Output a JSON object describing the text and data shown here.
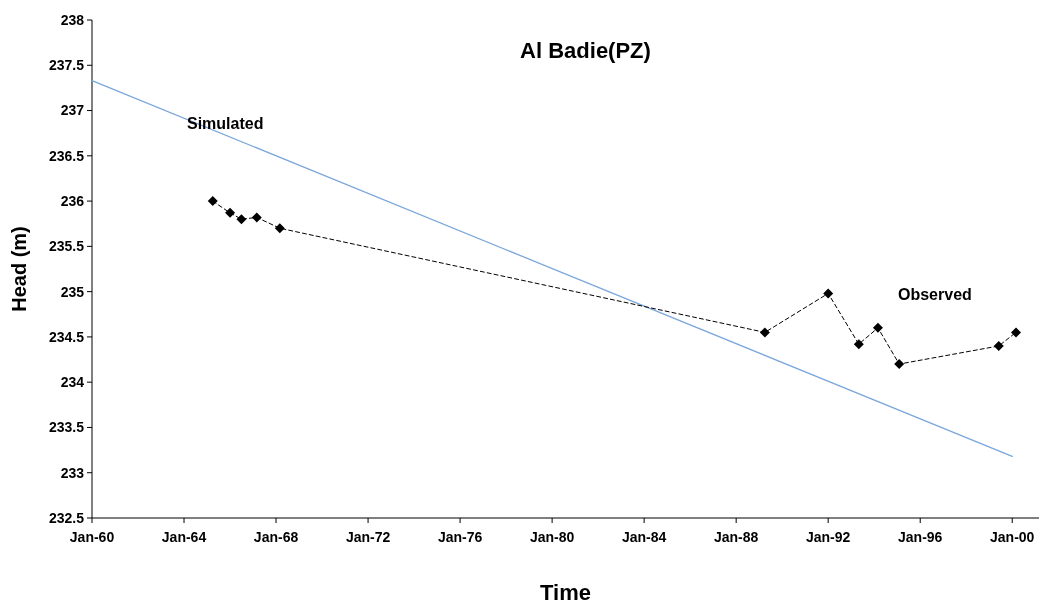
{
  "chart_data": {
    "type": "line",
    "title": "Al Badie(PZ)",
    "xlabel": "Time",
    "ylabel": "Head (m)",
    "xlim": [
      "1960-01",
      "2001-03"
    ],
    "xticks": [
      {
        "value": "1960-01",
        "label": "Jan-60"
      },
      {
        "value": "1964-01",
        "label": "Jan-64"
      },
      {
        "value": "1968-01",
        "label": "Jan-68"
      },
      {
        "value": "1972-01",
        "label": "Jan-72"
      },
      {
        "value": "1976-01",
        "label": "Jan-76"
      },
      {
        "value": "1980-01",
        "label": "Jan-80"
      },
      {
        "value": "1984-01",
        "label": "Jan-84"
      },
      {
        "value": "1988-01",
        "label": "Jan-88"
      },
      {
        "value": "1992-01",
        "label": "Jan-92"
      },
      {
        "value": "1996-01",
        "label": "Jan-96"
      },
      {
        "value": "2000-01",
        "label": "Jan-00"
      }
    ],
    "ylim": [
      232.5,
      238
    ],
    "yticks": [
      232.5,
      233,
      233.5,
      234,
      234.5,
      235,
      235.5,
      236,
      236.5,
      237,
      237.5,
      238
    ],
    "grid": false,
    "series": [
      {
        "name": "Simulated",
        "color": "#7aa6dc",
        "marker": "none",
        "line_style": "solid",
        "x": [
          "1960-01",
          "2000-01"
        ],
        "values": [
          237.33,
          233.18
        ]
      },
      {
        "name": "Observed",
        "color": "#000000",
        "marker": "diamond",
        "line_style": "dashed",
        "x": [
          "1965-04",
          "1966-01",
          "1966-07",
          "1967-03",
          "1968-03",
          "1989-04",
          "1992-01",
          "1993-05",
          "1994-03",
          "1995-02",
          "1999-06",
          "2000-03"
        ],
        "values": [
          236.0,
          235.87,
          235.8,
          235.82,
          235.7,
          234.55,
          234.98,
          234.42,
          234.6,
          234.2,
          234.4,
          234.55
        ]
      }
    ]
  }
}
